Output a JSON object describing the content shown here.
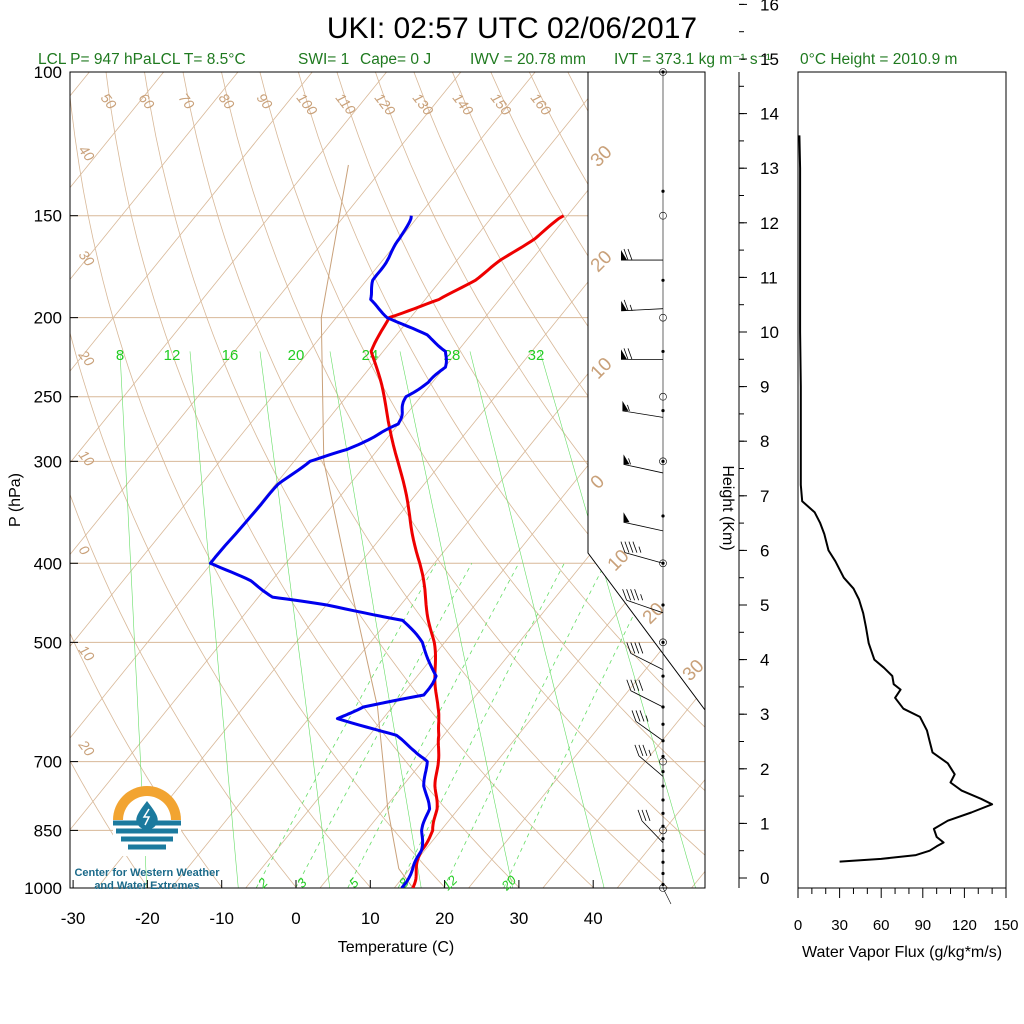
{
  "title": "UKI: 02:57 UTC 02/06/2017",
  "subtitle": {
    "lcl_p": "LCL P= 947 hPa",
    "lcl_t": "LCL T= 8.5°C",
    "swi": "SWI= 1",
    "cape": "Cape= 0 J",
    "iwv": "IWV = 20.78 mm",
    "ivt": "IVT = 373.1 kg m⁻¹ s⁻¹",
    "freezing_height": "0°C Height = 2010.9 m"
  },
  "logo": {
    "line1": "Center for Western Weather",
    "line2": "and Water Extremes",
    "colors": {
      "orange": "#f2a431",
      "blue": "#1b7a9e"
    }
  },
  "colors": {
    "temperature": "#ee0000",
    "dewpoint": "#0000ee",
    "isotherm": "#d8b898",
    "mixing_ratio": "#66dd66",
    "flux": "#000000"
  },
  "chart_data": [
    {
      "type": "line",
      "subtype": "skew-t",
      "xlabel": "Temperature (C)",
      "ylabel": "P (hPa)",
      "x_ticks": [
        "-30",
        "-20",
        "-10",
        "0",
        "10",
        "20",
        "30",
        "40"
      ],
      "y_ticks": [
        "100",
        "150",
        "200",
        "250",
        "300",
        "400",
        "500",
        "700",
        "850",
        "1000"
      ],
      "y_scale": "log",
      "ylim": [
        1000,
        100
      ],
      "xlim": [
        -34,
        52
      ],
      "isotherm_labels": [
        "50",
        "60",
        "70",
        "80",
        "90",
        "100",
        "110",
        "120",
        "130",
        "140",
        "150",
        "160",
        "40",
        "30",
        "20",
        "10",
        "0",
        "10",
        "20"
      ],
      "adiabat_labels": [
        "30",
        "20",
        "10",
        "0",
        "10",
        "20",
        "30"
      ],
      "mixing_ratio_labels_top": [
        "8",
        "12",
        "16",
        "20",
        "24",
        "28",
        "32"
      ],
      "mixing_ratio_labels_bottom": [
        "2",
        "3",
        "5",
        "8",
        "12",
        "20"
      ],
      "series": [
        {
          "name": "Temperature",
          "pressure_hPa": [
            1000,
            950,
            900,
            850,
            800,
            750,
            700,
            650,
            600,
            550,
            500,
            450,
            400,
            350,
            300,
            250,
            220,
            200,
            190,
            180,
            170,
            160,
            150
          ],
          "temperature_C": [
            12.5,
            11.0,
            9.5,
            9.0,
            7.0,
            4.5,
            2.0,
            -0.5,
            -4.0,
            -7.5,
            -11.5,
            -16.5,
            -22.0,
            -28.5,
            -36.0,
            -45.0,
            -51.5,
            -53.0,
            -48.0,
            -45.5,
            -44.0,
            -42.0,
            -40.5
          ]
        },
        {
          "name": "Dewpoint",
          "pressure_hPa": [
            1000,
            950,
            900,
            850,
            800,
            750,
            700,
            680,
            650,
            620,
            600,
            580,
            550,
            500,
            470,
            450,
            440,
            420,
            400,
            350,
            320,
            300,
            290,
            280,
            270,
            260,
            250,
            240,
            230,
            220,
            210,
            200,
            190,
            180,
            170,
            160,
            150
          ],
          "dewpoint_C": [
            11.0,
            10.5,
            9.5,
            7.5,
            6.0,
            3.0,
            0.5,
            -2.0,
            -6.5,
            -16.0,
            -14.0,
            -7.0,
            -7.5,
            -13.0,
            -18.0,
            -30.0,
            -38.0,
            -43.0,
            -50.0,
            -50.0,
            -49.5,
            -48.0,
            -44.0,
            -42.0,
            -40.0,
            -41.0,
            -42.0,
            -40.5,
            -40.0,
            -41.5,
            -46.0,
            -53.0,
            -57.5,
            -59.0,
            -59.5,
            -60.0,
            -61.0
          ]
        }
      ],
      "wind_barbs": [
        {
          "p": 170,
          "speed_kt": 70,
          "dir_deg": 270
        },
        {
          "p": 195,
          "speed_kt": 65,
          "dir_deg": 275
        },
        {
          "p": 225,
          "speed_kt": 70,
          "dir_deg": 270
        },
        {
          "p": 265,
          "speed_kt": 55,
          "dir_deg": 255
        },
        {
          "p": 310,
          "speed_kt": 55,
          "dir_deg": 250
        },
        {
          "p": 365,
          "speed_kt": 50,
          "dir_deg": 250
        },
        {
          "p": 400,
          "speed_kt": 45,
          "dir_deg": 245
        },
        {
          "p": 460,
          "speed_kt": 45,
          "dir_deg": 240
        },
        {
          "p": 540,
          "speed_kt": 40,
          "dir_deg": 230
        },
        {
          "p": 600,
          "speed_kt": 40,
          "dir_deg": 230
        },
        {
          "p": 660,
          "speed_kt": 35,
          "dir_deg": 220
        },
        {
          "p": 730,
          "speed_kt": 35,
          "dir_deg": 215
        },
        {
          "p": 880,
          "speed_kt": 30,
          "dir_deg": 210
        }
      ]
    },
    {
      "type": "line",
      "xlabel": "Water Vapor Flux (g/kg*m/s)",
      "ylabel": "Height (Km)",
      "xlim": [
        0,
        150
      ],
      "ylim": [
        0,
        16.5
      ],
      "x_ticks": [
        "0",
        "30",
        "60",
        "90",
        "120",
        "150"
      ],
      "y_ticks": [
        "0",
        "1",
        "2",
        "3",
        "4",
        "5",
        "6",
        "7",
        "8",
        "9",
        "10",
        "11",
        "12",
        "13",
        "14",
        "15",
        "16"
      ],
      "series": [
        {
          "name": "Water Vapor Flux",
          "height_km": [
            0.3,
            0.35,
            0.42,
            0.5,
            0.58,
            0.65,
            0.75,
            0.9,
            1.05,
            1.2,
            1.35,
            1.45,
            1.6,
            1.75,
            1.9,
            2.1,
            2.3,
            2.5,
            2.7,
            2.95,
            3.1,
            3.3,
            3.45,
            3.55,
            3.7,
            3.85,
            4.0,
            4.3,
            4.6,
            4.85,
            5.1,
            5.3,
            5.5,
            5.8,
            6.0,
            6.3,
            6.5,
            6.7,
            6.9,
            7.2,
            8.0,
            9.0,
            10.0,
            11.0,
            12.0,
            13.0,
            13.6
          ],
          "flux": [
            30,
            60,
            85,
            95,
            100,
            105,
            100,
            98,
            108,
            125,
            140,
            132,
            118,
            110,
            113,
            108,
            97,
            95,
            93,
            88,
            76,
            70,
            74,
            69,
            68,
            62,
            55,
            51,
            49,
            47,
            44,
            40,
            33,
            27,
            22,
            19,
            16,
            12,
            3,
            2,
            2,
            2,
            1.5,
            1.5,
            1.5,
            1.5,
            1
          ]
        }
      ]
    }
  ]
}
